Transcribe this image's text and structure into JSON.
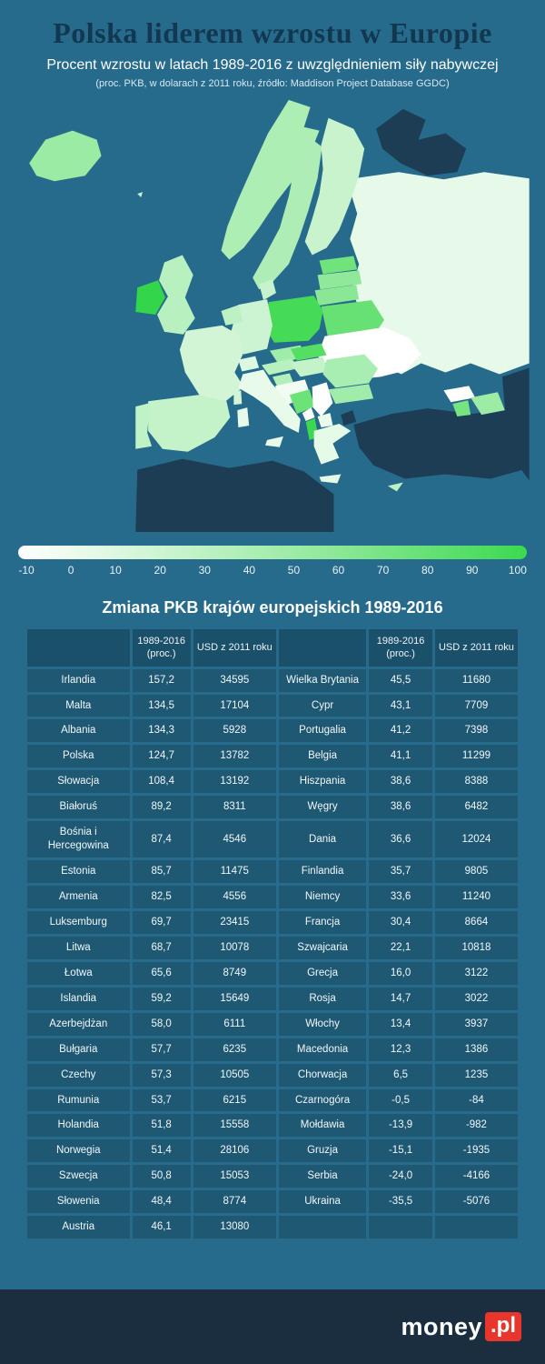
{
  "header": {
    "title": "Polska liderem wzrostu w Europie",
    "subtitle": "Procent wzrostu w latach 1989-2016 z uwzględnieniem siły nabywczej",
    "note": "(proc. PKB, w dolarach z 2011 roku, źródło: Maddison Project Database GGDC)"
  },
  "legend": {
    "ticks": [
      "-10",
      "0",
      "10",
      "20",
      "30",
      "40",
      "50",
      "60",
      "70",
      "80",
      "90",
      "100"
    ],
    "gradient_start": "#ffffff",
    "gradient_mid": "#9ceba5",
    "gradient_end": "#3cd950"
  },
  "map": {
    "sea": "#276b8c",
    "fills": {
      "nodata": "#1d3d54",
      "iceland": "#9ceba5",
      "faroe": "#c7f3cc",
      "norway": "#adeeb5",
      "sweden": "#aeeeb6",
      "finland": "#c8f3cd",
      "denmark": "#c7f3cc",
      "russia": "#e7fae9",
      "estonia": "#70e37c",
      "latvia": "#90e89a",
      "lithuania": "#8ae795",
      "belarus": "#68e174",
      "poland": "#45db57",
      "ukraine": "#ffffff",
      "moldova": "#ffffff",
      "germany": "#cdf4d2",
      "benelux": "#bdf1c4",
      "france": "#d2f5d6",
      "uk": "#b9f0c0",
      "ireland": "#33d64b",
      "spain": "#c4f3ca",
      "portugal": "#bff2c5",
      "switzerland": "#dcf8e0",
      "czechia": "#a0ecaa",
      "austria": "#b8f0bf",
      "slovakia": "#55de64",
      "hungary": "#c4f3ca",
      "slovenia": "#b4efbb",
      "croatia": "#f2fcf3",
      "bosnia": "#6ce277",
      "serbia": "#ffffff",
      "montenegro": "#fbfefb",
      "romania": "#a8edb1",
      "bulgaria": "#a0ecaa",
      "albania": "#3cd950",
      "macedonia": "#eafbeb",
      "greece": "#e5fae7",
      "italy": "#e8fbea",
      "corsica": "#d2f5d6",
      "georgia": "#ffffff",
      "armenia": "#76e481",
      "azerbaijan": "#9eeba6",
      "cyprus": "#baf1c1"
    }
  },
  "table": {
    "title": "Zmiana PKB krajów europejskich 1989-2016",
    "headers": {
      "pct": "1989-2016 (proc.)",
      "usd": "USD z 2011 roku"
    },
    "rows": [
      {
        "c1": "Irlandia",
        "p1": "157,2",
        "u1": "34595",
        "c2": "Wielka Brytania",
        "p2": "45,5",
        "u2": "11680"
      },
      {
        "c1": "Malta",
        "p1": "134,5",
        "u1": "17104",
        "c2": "Cypr",
        "p2": "43,1",
        "u2": "7709"
      },
      {
        "c1": "Albania",
        "p1": "134,3",
        "u1": "5928",
        "c2": "Portugalia",
        "p2": "41,2",
        "u2": "7398"
      },
      {
        "c1": "Polska",
        "p1": "124,7",
        "u1": "13782",
        "c2": "Belgia",
        "p2": "41,1",
        "u2": "11299"
      },
      {
        "c1": "Słowacja",
        "p1": "108,4",
        "u1": "13192",
        "c2": "Hiszpania",
        "p2": "38,6",
        "u2": "8388"
      },
      {
        "c1": "Białoruś",
        "p1": "89,2",
        "u1": "8311",
        "c2": "Węgry",
        "p2": "38,6",
        "u2": "6482"
      },
      {
        "c1": "Bośnia i Hercegowina",
        "p1": "87,4",
        "u1": "4546",
        "c2": "Dania",
        "p2": "36,6",
        "u2": "12024"
      },
      {
        "c1": "Estonia",
        "p1": "85,7",
        "u1": "11475",
        "c2": "Finlandia",
        "p2": "35,7",
        "u2": "9805"
      },
      {
        "c1": "Armenia",
        "p1": "82,5",
        "u1": "4556",
        "c2": "Niemcy",
        "p2": "33,6",
        "u2": "11240"
      },
      {
        "c1": "Luksemburg",
        "p1": "69,7",
        "u1": "23415",
        "c2": "Francja",
        "p2": "30,4",
        "u2": "8664"
      },
      {
        "c1": "Litwa",
        "p1": "68,7",
        "u1": "10078",
        "c2": "Szwajcaria",
        "p2": "22,1",
        "u2": "10818"
      },
      {
        "c1": "Łotwa",
        "p1": "65,6",
        "u1": "8749",
        "c2": "Grecja",
        "p2": "16,0",
        "u2": "3122"
      },
      {
        "c1": "Islandia",
        "p1": "59,2",
        "u1": "15649",
        "c2": "Rosja",
        "p2": "14,7",
        "u2": "3022"
      },
      {
        "c1": "Azerbejdżan",
        "p1": "58,0",
        "u1": "6111",
        "c2": "Włochy",
        "p2": "13,4",
        "u2": "3937"
      },
      {
        "c1": "Bułgaria",
        "p1": "57,7",
        "u1": "6235",
        "c2": "Macedonia",
        "p2": "12,3",
        "u2": "1386"
      },
      {
        "c1": "Czechy",
        "p1": "57,3",
        "u1": "10505",
        "c2": "Chorwacja",
        "p2": "6,5",
        "u2": "1235"
      },
      {
        "c1": "Rumunia",
        "p1": "53,7",
        "u1": "6215",
        "c2": "Czarnogóra",
        "p2": "-0,5",
        "u2": "-84"
      },
      {
        "c1": "Holandia",
        "p1": "51,8",
        "u1": "15558",
        "c2": "Mołdawia",
        "p2": "-13,9",
        "u2": "-982"
      },
      {
        "c1": "Norwegia",
        "p1": "51,4",
        "u1": "28106",
        "c2": "Gruzja",
        "p2": "-15,1",
        "u2": "-1935"
      },
      {
        "c1": "Szwecja",
        "p1": "50,8",
        "u1": "15053",
        "c2": "Serbia",
        "p2": "-24,0",
        "u2": "-4166"
      },
      {
        "c1": "Słowenia",
        "p1": "48,4",
        "u1": "8774",
        "c2": "Ukraina",
        "p2": "-35,5",
        "u2": "-5076"
      },
      {
        "c1": "Austria",
        "p1": "46,1",
        "u1": "13080",
        "c2": "",
        "p2": "",
        "u2": ""
      }
    ]
  },
  "chart_data": {
    "type": "heatmap",
    "title": "Polska liderem wzrostu w Europie",
    "subtitle": "Procent wzrostu w latach 1989-2016 z uwzględnieniem siły nabywczej",
    "legend_scale": {
      "min": -10,
      "max": 100,
      "color_min": "#ffffff",
      "color_max": "#3cd950"
    },
    "categories": [
      "Irlandia",
      "Malta",
      "Albania",
      "Polska",
      "Słowacja",
      "Białoruś",
      "Bośnia i Hercegowina",
      "Estonia",
      "Armenia",
      "Luksemburg",
      "Litwa",
      "Łotwa",
      "Islandia",
      "Azerbejdżan",
      "Bułgaria",
      "Czechy",
      "Rumunia",
      "Holandia",
      "Norwegia",
      "Szwecja",
      "Słowenia",
      "Austria",
      "Wielka Brytania",
      "Cypr",
      "Portugalia",
      "Belgia",
      "Hiszpania",
      "Węgry",
      "Dania",
      "Finlandia",
      "Niemcy",
      "Francja",
      "Szwajcaria",
      "Grecja",
      "Rosja",
      "Włochy",
      "Macedonia",
      "Chorwacja",
      "Czarnogóra",
      "Mołdawia",
      "Gruzja",
      "Serbia",
      "Ukraina"
    ],
    "series": [
      {
        "name": "1989-2016 (proc.)",
        "values": [
          157.2,
          134.5,
          134.3,
          124.7,
          108.4,
          89.2,
          87.4,
          85.7,
          82.5,
          69.7,
          68.7,
          65.6,
          59.2,
          58.0,
          57.7,
          57.3,
          53.7,
          51.8,
          51.4,
          50.8,
          48.4,
          46.1,
          45.5,
          43.1,
          41.2,
          41.1,
          38.6,
          38.6,
          36.6,
          35.7,
          33.6,
          30.4,
          22.1,
          16.0,
          14.7,
          13.4,
          12.3,
          6.5,
          -0.5,
          -13.9,
          -15.1,
          -24.0,
          -35.5
        ]
      },
      {
        "name": "USD z 2011 roku",
        "values": [
          34595,
          17104,
          5928,
          13782,
          13192,
          8311,
          4546,
          11475,
          4556,
          23415,
          10078,
          8749,
          15649,
          6111,
          6235,
          10505,
          6215,
          15558,
          28106,
          15053,
          8774,
          13080,
          11680,
          7709,
          7398,
          11299,
          8388,
          6482,
          12024,
          9805,
          11240,
          8664,
          10818,
          3122,
          3022,
          3937,
          1386,
          1235,
          -84,
          -982,
          -1935,
          -4166,
          -5076
        ]
      }
    ]
  },
  "footer": {
    "logo_money": "money",
    "logo_pl": ".pl"
  }
}
